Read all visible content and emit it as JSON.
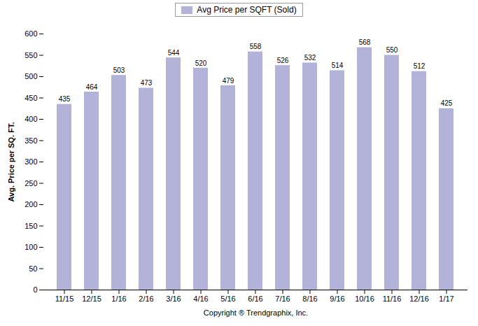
{
  "chart_data": {
    "type": "bar",
    "categories": [
      "11/15",
      "12/15",
      "1/16",
      "2/16",
      "3/16",
      "4/16",
      "5/16",
      "6/16",
      "7/16",
      "8/16",
      "9/16",
      "10/16",
      "11/16",
      "12/16",
      "1/17"
    ],
    "values": [
      435,
      464,
      503,
      473,
      544,
      520,
      479,
      558,
      526,
      532,
      514,
      568,
      550,
      512,
      425
    ],
    "series_name": "Avg Price per SQFT (Sold)",
    "color": "#b3b3d9",
    "xlabel": "Copyright ® Trendgraphix, Inc.",
    "ylabel": "Avg. Price per SQ. FT.",
    "ylim": [
      0,
      600
    ],
    "yticks": [
      0,
      50,
      100,
      150,
      200,
      250,
      300,
      350,
      400,
      450,
      500,
      550,
      600
    ],
    "grid": false,
    "legend": "top",
    "data_labels": true
  }
}
